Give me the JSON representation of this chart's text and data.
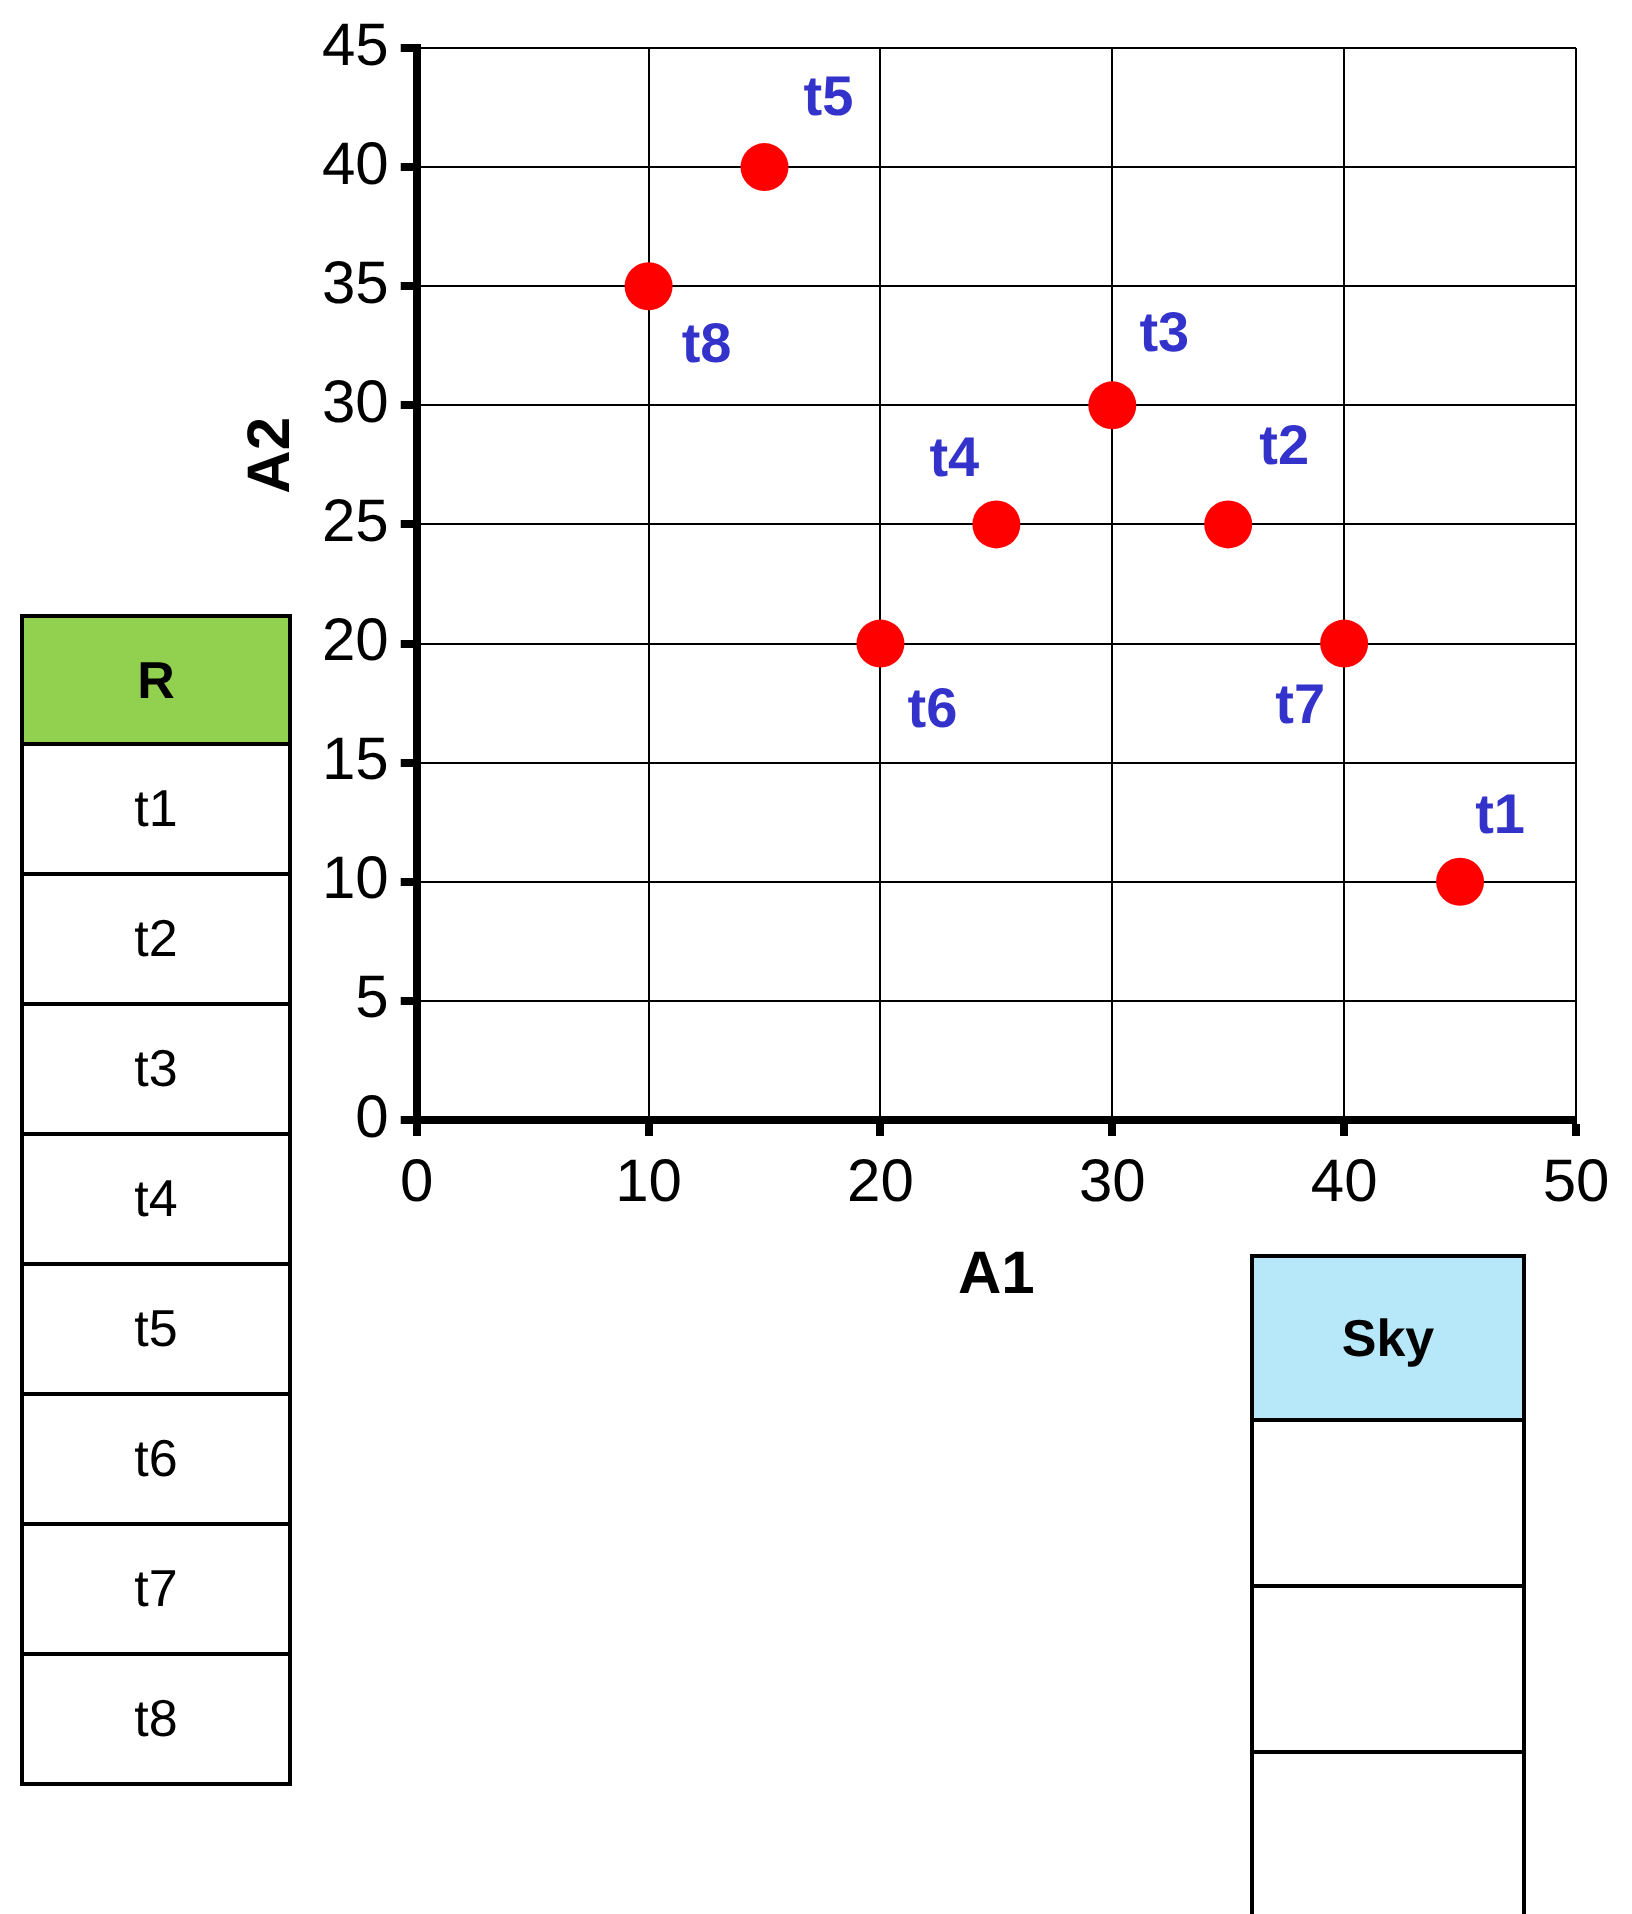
{
  "chart_data": [
    {
      "type": "scatter",
      "xlabel": "A1",
      "ylabel": "A2",
      "xlim": [
        0,
        50
      ],
      "xticks": [
        0,
        10,
        20,
        30,
        40,
        50
      ],
      "ylim": [
        0,
        45
      ],
      "yticks": [
        0,
        5,
        10,
        15,
        20,
        25,
        30,
        35,
        40,
        45
      ],
      "grid": true,
      "legend": false,
      "marker": "circle",
      "series": [
        {
          "color": "#ff0000",
          "x": [
            45,
            35,
            30,
            25,
            15,
            20,
            40,
            10
          ],
          "values": [
            10,
            25,
            30,
            25,
            40,
            20,
            20,
            35
          ]
        }
      ],
      "annotations": [
        {
          "text": "t1",
          "x": 45,
          "y": 10
        },
        {
          "text": "t2",
          "x": 35,
          "y": 25
        },
        {
          "text": "t3",
          "x": 30,
          "y": 30
        },
        {
          "text": "t4",
          "x": 25,
          "y": 25
        },
        {
          "text": "t5",
          "x": 15,
          "y": 40
        },
        {
          "text": "t6",
          "x": 20,
          "y": 20
        },
        {
          "text": "t7",
          "x": 40,
          "y": 20
        },
        {
          "text": "t8",
          "x": 10,
          "y": 35
        }
      ]
    },
    {
      "type": "other",
      "title": "R",
      "annotations": [
        "t1",
        "t2",
        "t3",
        "t4",
        "t5",
        "t6",
        "t7",
        "t8"
      ]
    },
    {
      "type": "other",
      "title": "Sky"
    }
  ]
}
